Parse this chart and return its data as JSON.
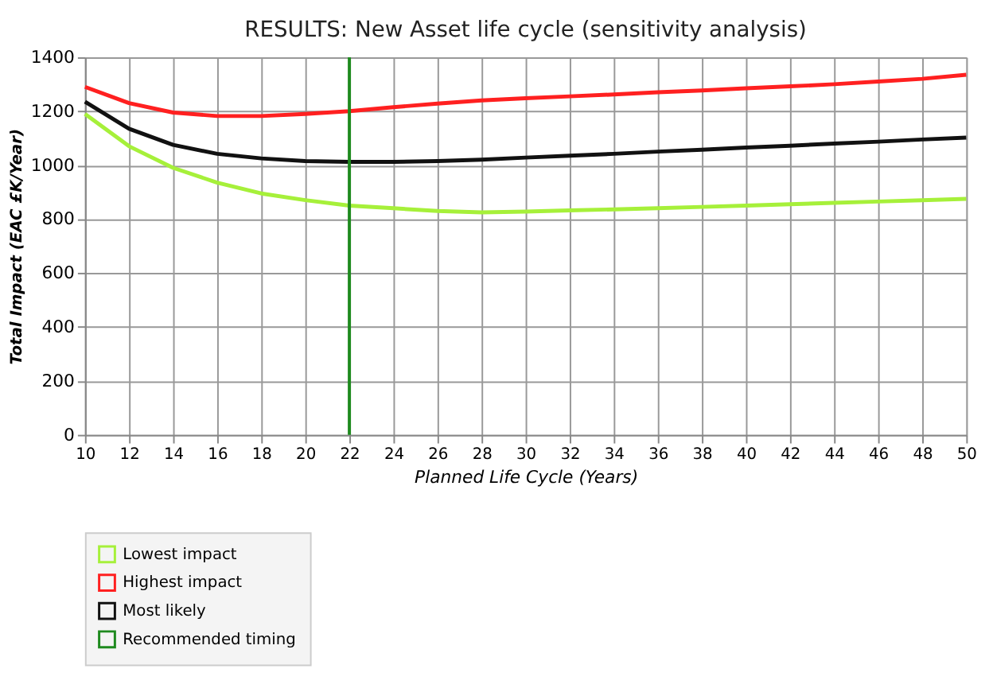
{
  "chart_data": {
    "type": "line",
    "title": "RESULTS: New Asset life cycle (sensitivity analysis)",
    "xlabel": "Planned Life Cycle (Years)",
    "ylabel": "Total Impact (EAC £K/Year)",
    "x": [
      10,
      12,
      14,
      16,
      18,
      20,
      22,
      24,
      26,
      28,
      30,
      32,
      34,
      36,
      38,
      40,
      42,
      44,
      46,
      48,
      50
    ],
    "series": [
      {
        "name": "Lowest impact",
        "color": "#a6f03a",
        "values": [
          1190,
          1070,
          990,
          935,
          895,
          870,
          850,
          840,
          830,
          825,
          828,
          832,
          836,
          840,
          845,
          850,
          855,
          860,
          865,
          870,
          875
        ]
      },
      {
        "name": "Highest impact",
        "color": "#ff2020",
        "values": [
          1290,
          1230,
          1195,
          1182,
          1182,
          1190,
          1200,
          1215,
          1228,
          1240,
          1248,
          1255,
          1262,
          1270,
          1277,
          1285,
          1292,
          1300,
          1310,
          1320,
          1335
        ]
      },
      {
        "name": "Most likely",
        "color": "#111111",
        "values": [
          1235,
          1135,
          1075,
          1042,
          1025,
          1015,
          1012,
          1012,
          1015,
          1020,
          1028,
          1035,
          1042,
          1050,
          1057,
          1065,
          1072,
          1080,
          1087,
          1095,
          1102
        ]
      }
    ],
    "ref_lines": [
      {
        "axis": "x",
        "value": 22,
        "label": "Recommended timing",
        "color": "#1e8a1e"
      }
    ],
    "xlim": [
      10,
      50
    ],
    "xticks": [
      10,
      12,
      14,
      16,
      18,
      20,
      22,
      24,
      26,
      28,
      30,
      32,
      34,
      36,
      38,
      40,
      42,
      44,
      46,
      48,
      50
    ],
    "ylim": [
      0,
      1400
    ],
    "yticks": [
      0,
      200,
      400,
      600,
      800,
      1000,
      1200,
      1400
    ],
    "grid": true,
    "legend": "bottom left",
    "marker": "none",
    "line_style": "solid"
  }
}
